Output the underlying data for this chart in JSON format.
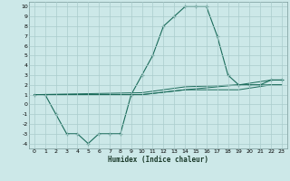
{
  "xlabel": "Humidex (Indice chaleur)",
  "bg_color": "#cce8e8",
  "grid_color": "#aacccc",
  "line_color": "#1a6b5a",
  "xlim": [
    -0.5,
    23.5
  ],
  "ylim": [
    -4.5,
    10.5
  ],
  "xticks": [
    0,
    1,
    2,
    3,
    4,
    5,
    6,
    7,
    8,
    9,
    10,
    11,
    12,
    13,
    14,
    15,
    16,
    17,
    18,
    19,
    20,
    21,
    22,
    23
  ],
  "yticks": [
    -4,
    -3,
    -2,
    -1,
    0,
    1,
    2,
    3,
    4,
    5,
    6,
    7,
    8,
    9,
    10
  ],
  "series": [
    [
      0,
      1
    ],
    [
      1,
      1
    ],
    [
      2,
      -1
    ],
    [
      3,
      -3
    ],
    [
      4,
      -3
    ],
    [
      5,
      -4
    ],
    [
      6,
      -3
    ],
    [
      7,
      -3
    ],
    [
      8,
      -3
    ],
    [
      9,
      1
    ],
    [
      10,
      3
    ],
    [
      11,
      5
    ],
    [
      12,
      8
    ],
    [
      13,
      9
    ],
    [
      14,
      10
    ],
    [
      15,
      10
    ],
    [
      16,
      10
    ],
    [
      17,
      7
    ],
    [
      18,
      3
    ],
    [
      19,
      2
    ],
    [
      20,
      2
    ],
    [
      21,
      2
    ],
    [
      22,
      2.5
    ],
    [
      23,
      2.5
    ]
  ],
  "line2": [
    [
      0,
      1
    ],
    [
      10,
      1
    ],
    [
      14,
      1.5
    ],
    [
      19,
      1.5
    ],
    [
      22,
      2
    ],
    [
      23,
      2
    ]
  ],
  "line3": [
    [
      0,
      1
    ],
    [
      10,
      1
    ],
    [
      14,
      1.5
    ],
    [
      19,
      2
    ],
    [
      22,
      2
    ],
    [
      23,
      2
    ]
  ],
  "line4": [
    [
      0,
      1
    ],
    [
      10,
      1.2
    ],
    [
      14,
      1.8
    ],
    [
      19,
      2
    ],
    [
      22,
      2.5
    ],
    [
      23,
      2.5
    ]
  ]
}
